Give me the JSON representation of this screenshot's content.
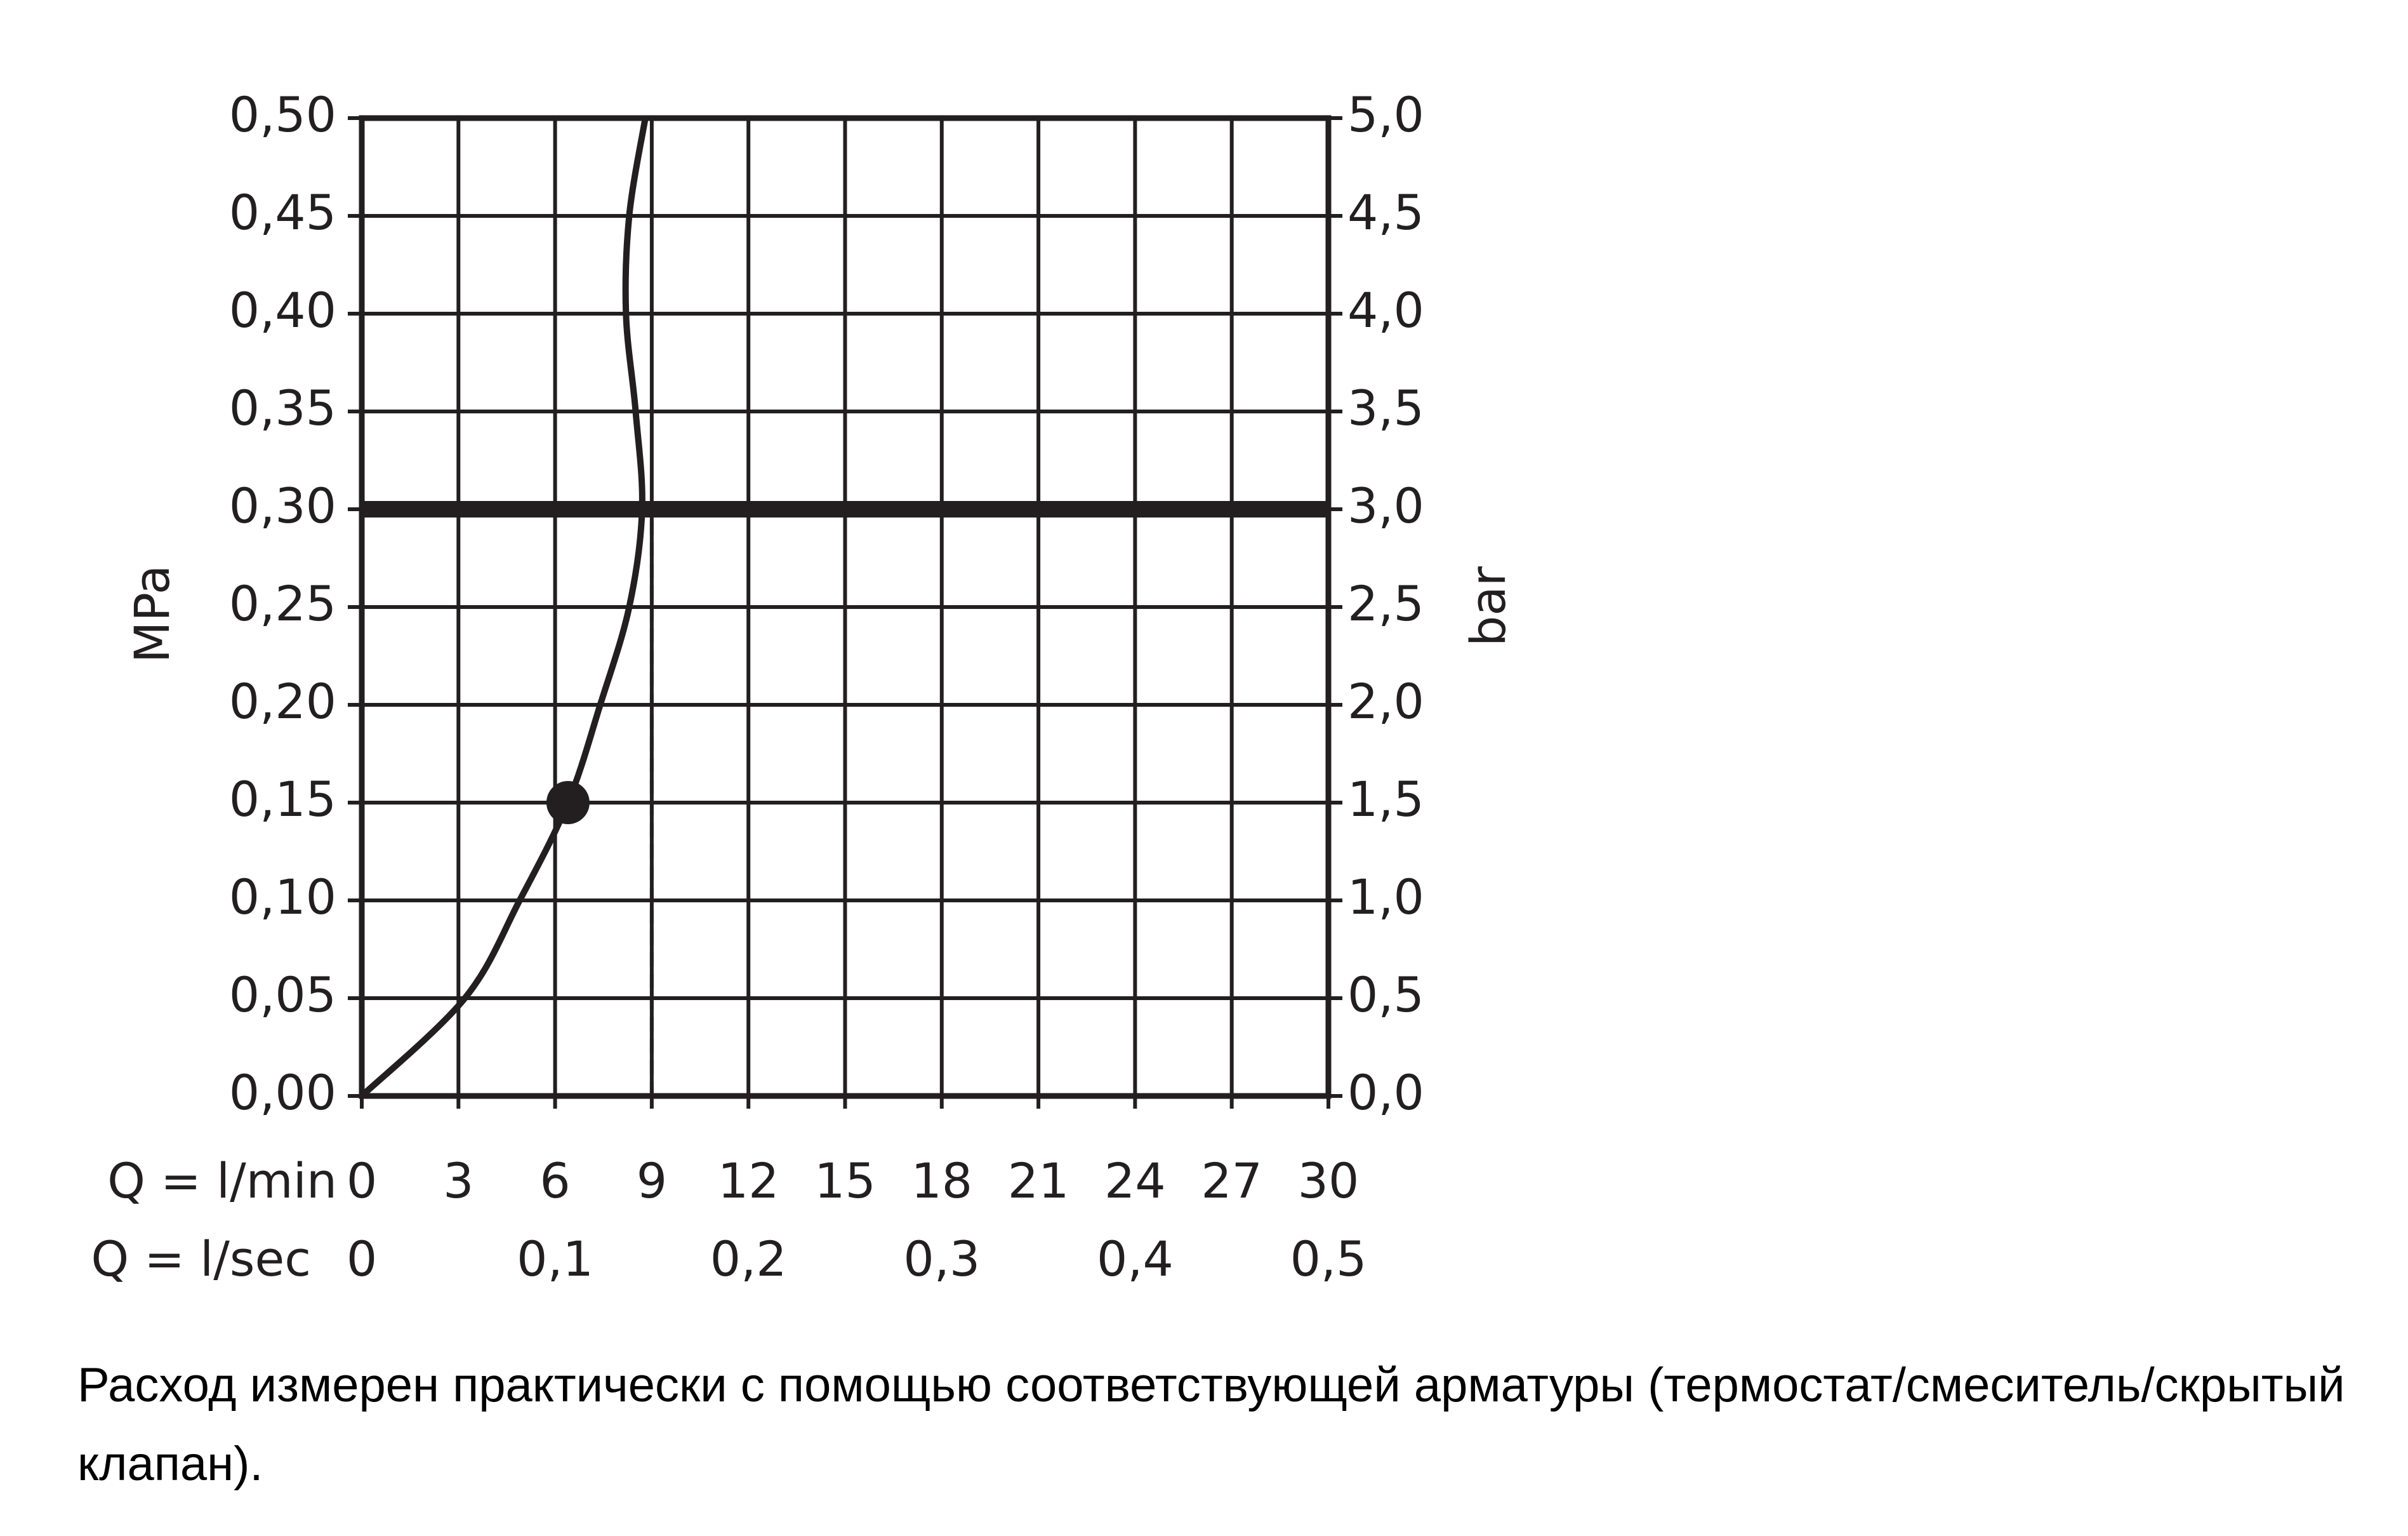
{
  "chart_data": {
    "type": "line",
    "xlabel": "Q = l/min",
    "x2label": "Q = l/sec",
    "ylabel": "MPa",
    "y2label": "bar",
    "x": [
      0,
      3.2,
      4.9,
      6.4,
      7.4,
      8.3,
      8.7,
      8.5,
      8.2,
      8.3,
      8.8
    ],
    "series": [
      {
        "color": "#231f20",
        "values": [
          0,
          0.05,
          0.1,
          0.15,
          0.2,
          0.25,
          0.3,
          0.35,
          0.4,
          0.45,
          0.5
        ]
      }
    ],
    "xlim": [
      0,
      30
    ],
    "xticks": [
      0,
      3,
      6,
      9,
      12,
      15,
      18,
      21,
      24,
      27,
      30
    ],
    "x2lim": [
      0,
      0.5
    ],
    "x2ticks": [
      0,
      {
        "value": 0.1,
        "label": "0,1"
      },
      {
        "value": 0.2,
        "label": "0,2"
      },
      {
        "value": 0.3,
        "label": "0,3"
      },
      {
        "value": 0.4,
        "label": "0,4"
      },
      {
        "value": 0.5,
        "label": "0,5"
      }
    ],
    "ylim": [
      0,
      0.5
    ],
    "yticks": [
      {
        "value": 0,
        "label": "0,00"
      },
      {
        "value": 0.05,
        "label": "0,05"
      },
      {
        "value": 0.1,
        "label": "0,10"
      },
      {
        "value": 0.15,
        "label": "0,15"
      },
      {
        "value": 0.2,
        "label": "0,20"
      },
      {
        "value": 0.25,
        "label": "0,25"
      },
      {
        "value": 0.3,
        "label": "0,30"
      },
      {
        "value": 0.35,
        "label": "0,35"
      },
      {
        "value": 0.4,
        "label": "0,40"
      },
      {
        "value": 0.45,
        "label": "0,45"
      },
      {
        "value": 0.5,
        "label": "0,50"
      }
    ],
    "y2lim": [
      0,
      5
    ],
    "y2ticks": [
      {
        "value": 0,
        "label": "0,0"
      },
      {
        "value": 0.5,
        "label": "0,5"
      },
      {
        "value": 1,
        "label": "1,0"
      },
      {
        "value": 1.5,
        "label": "1,5"
      },
      {
        "value": 2,
        "label": "2,0"
      },
      {
        "value": 2.5,
        "label": "2,5"
      },
      {
        "value": 3,
        "label": "3,0"
      },
      {
        "value": 3.5,
        "label": "3,5"
      },
      {
        "value": 4,
        "label": "4,0"
      },
      {
        "value": 4.5,
        "label": "4,5"
      },
      {
        "value": 5,
        "label": "5,0"
      }
    ],
    "grid": true,
    "hline": 0.3,
    "vline": 9,
    "highlight": {
      "x": 6.4,
      "y": 0.15
    }
  },
  "caption": "Расход измерен практически с помощью соответствующей арматуры (термостат/смеситель/скрытый клапан)."
}
